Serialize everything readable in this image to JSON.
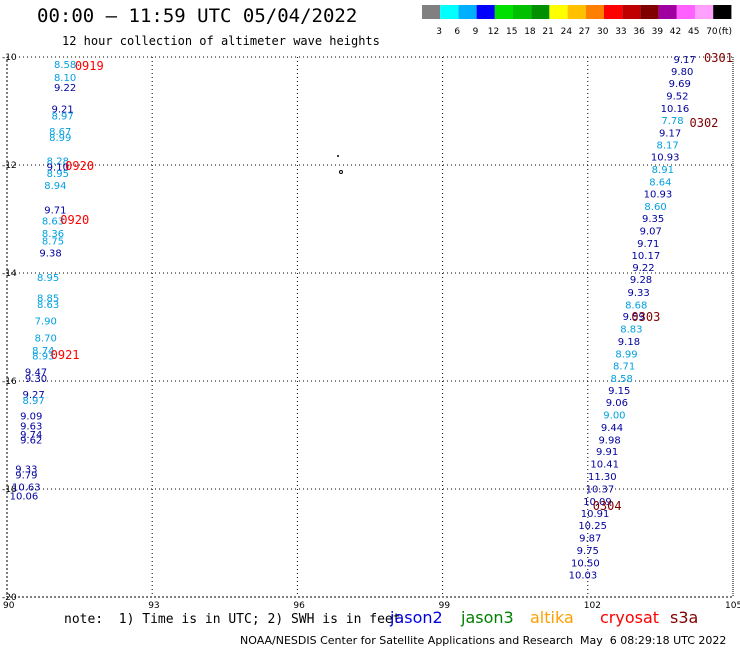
{
  "header": {
    "title": "00:00 — 11:59 UTC 05/04/2022",
    "subtitle": "12 hour collection of altimeter wave heights"
  },
  "colorbar": {
    "colors": [
      "#808080",
      "#00ffff",
      "#00b0ff",
      "#0000ff",
      "#00e000",
      "#00c000",
      "#009000",
      "#ffff00",
      "#ffc000",
      "#ff8000",
      "#ff0000",
      "#c00000",
      "#800000",
      "#a000a0",
      "#ff60ff",
      "#ffa0ff",
      "#000000"
    ],
    "labels": [
      "3",
      "6",
      "9",
      "12",
      "15",
      "18",
      "21",
      "24",
      "27",
      "30",
      "33",
      "36",
      "39",
      "42",
      "45",
      "70",
      "(ft)"
    ]
  },
  "map": {
    "lat_ticks": [
      "-10",
      "-12",
      "-14",
      "-16",
      "-18",
      "-20"
    ],
    "lon_ticks": [
      "90",
      "93",
      "96",
      "99",
      "102",
      "105"
    ]
  },
  "chart_data": {
    "type": "scatter",
    "xlim": [
      90,
      105
    ],
    "ylim": [
      -20,
      -10
    ],
    "grid": true,
    "colors": {
      "dark_blue": "#0000a0",
      "light_blue": "#00a0e0",
      "time_red": "#ff0000",
      "time_maroon": "#800000"
    },
    "time_labels": [
      {
        "text": "0919",
        "x": 91.7,
        "y": -10.15,
        "color": "time_red"
      },
      {
        "text": "0920",
        "x": 91.5,
        "y": -12.0,
        "color": "time_red"
      },
      {
        "text": "0920",
        "x": 91.4,
        "y": -13.0,
        "color": "time_red"
      },
      {
        "text": "0921",
        "x": 91.2,
        "y": -15.5,
        "color": "time_red"
      },
      {
        "text": "0301",
        "x": 104.7,
        "y": -10.0,
        "color": "time_maroon"
      },
      {
        "text": "0302",
        "x": 104.4,
        "y": -11.2,
        "color": "time_maroon"
      },
      {
        "text": "0303",
        "x": 103.2,
        "y": -14.8,
        "color": "time_maroon"
      },
      {
        "text": "0304",
        "x": 102.4,
        "y": -18.3,
        "color": "time_maroon"
      }
    ],
    "points": [
      {
        "v": "8.58",
        "x": 91.2,
        "y": -10.13,
        "c": "light_blue"
      },
      {
        "v": "8.10",
        "x": 91.2,
        "y": -10.37,
        "c": "light_blue"
      },
      {
        "v": "9.22",
        "x": 91.2,
        "y": -10.56,
        "c": "dark_blue"
      },
      {
        "v": "9.21",
        "x": 91.15,
        "y": -10.95,
        "c": "dark_blue"
      },
      {
        "v": "8.97",
        "x": 91.15,
        "y": -11.08,
        "c": "light_blue"
      },
      {
        "v": "8.67",
        "x": 91.1,
        "y": -11.37,
        "c": "light_blue"
      },
      {
        "v": "8.99",
        "x": 91.1,
        "y": -11.48,
        "c": "light_blue"
      },
      {
        "v": "8.28",
        "x": 91.05,
        "y": -11.92,
        "c": "light_blue"
      },
      {
        "v": "9.10",
        "x": 91.05,
        "y": -12.03,
        "c": "dark_blue"
      },
      {
        "v": "8.95",
        "x": 91.05,
        "y": -12.15,
        "c": "light_blue"
      },
      {
        "v": "8.94",
        "x": 91.0,
        "y": -12.37,
        "c": "light_blue"
      },
      {
        "v": "9.71",
        "x": 91.0,
        "y": -12.82,
        "c": "dark_blue"
      },
      {
        "v": "8.63",
        "x": 90.95,
        "y": -13.03,
        "c": "light_blue"
      },
      {
        "v": "8.36",
        "x": 90.95,
        "y": -13.26,
        "c": "light_blue"
      },
      {
        "v": "8.75",
        "x": 90.95,
        "y": -13.4,
        "c": "light_blue"
      },
      {
        "v": "9.38",
        "x": 90.9,
        "y": -13.62,
        "c": "dark_blue"
      },
      {
        "v": "8.95",
        "x": 90.85,
        "y": -14.07,
        "c": "light_blue"
      },
      {
        "v": "8.85",
        "x": 90.85,
        "y": -14.45,
        "c": "light_blue"
      },
      {
        "v": "8.63",
        "x": 90.85,
        "y": -14.57,
        "c": "light_blue"
      },
      {
        "v": "7.90",
        "x": 90.8,
        "y": -14.88,
        "c": "light_blue"
      },
      {
        "v": "8.70",
        "x": 90.8,
        "y": -15.19,
        "c": "light_blue"
      },
      {
        "v": "8.74",
        "x": 90.75,
        "y": -15.43,
        "c": "light_blue"
      },
      {
        "v": "8.93",
        "x": 90.75,
        "y": -15.53,
        "c": "light_blue"
      },
      {
        "v": "9.47",
        "x": 90.6,
        "y": -15.82,
        "c": "dark_blue"
      },
      {
        "v": "9.30",
        "x": 90.6,
        "y": -15.94,
        "c": "dark_blue"
      },
      {
        "v": "9.27",
        "x": 90.55,
        "y": -16.24,
        "c": "dark_blue"
      },
      {
        "v": "8.97",
        "x": 90.55,
        "y": -16.35,
        "c": "light_blue"
      },
      {
        "v": "9.09",
        "x": 90.5,
        "y": -16.64,
        "c": "dark_blue"
      },
      {
        "v": "9.63",
        "x": 90.5,
        "y": -16.82,
        "c": "dark_blue"
      },
      {
        "v": "9.74",
        "x": 90.5,
        "y": -16.98,
        "c": "dark_blue"
      },
      {
        "v": "9.62",
        "x": 90.5,
        "y": -17.08,
        "c": "dark_blue"
      },
      {
        "v": "9.33",
        "x": 90.4,
        "y": -17.62,
        "c": "dark_blue"
      },
      {
        "v": "9.79",
        "x": 90.4,
        "y": -17.73,
        "c": "dark_blue"
      },
      {
        "v": "10.63",
        "x": 90.4,
        "y": -17.95,
        "c": "dark_blue"
      },
      {
        "v": "10.06",
        "x": 90.35,
        "y": -18.12,
        "c": "dark_blue"
      },
      {
        "v": "9.17",
        "x": 104.0,
        "y": -10.04,
        "c": "dark_blue"
      },
      {
        "v": "9.80",
        "x": 103.95,
        "y": -10.26,
        "c": "dark_blue"
      },
      {
        "v": "9.69",
        "x": 103.9,
        "y": -10.48,
        "c": "dark_blue"
      },
      {
        "v": "9.52",
        "x": 103.85,
        "y": -10.71,
        "c": "dark_blue"
      },
      {
        "v": "10.16",
        "x": 103.8,
        "y": -10.94,
        "c": "dark_blue"
      },
      {
        "v": "7.78",
        "x": 103.75,
        "y": -11.17,
        "c": "light_blue"
      },
      {
        "v": "9.17",
        "x": 103.7,
        "y": -11.4,
        "c": "dark_blue"
      },
      {
        "v": "8.17",
        "x": 103.65,
        "y": -11.62,
        "c": "light_blue"
      },
      {
        "v": "10.93",
        "x": 103.6,
        "y": -11.84,
        "c": "dark_blue"
      },
      {
        "v": "8.91",
        "x": 103.55,
        "y": -12.07,
        "c": "light_blue"
      },
      {
        "v": "8.64",
        "x": 103.5,
        "y": -12.31,
        "c": "light_blue"
      },
      {
        "v": "10.93",
        "x": 103.45,
        "y": -12.53,
        "c": "dark_blue"
      },
      {
        "v": "8.60",
        "x": 103.4,
        "y": -12.76,
        "c": "light_blue"
      },
      {
        "v": "9.35",
        "x": 103.35,
        "y": -12.98,
        "c": "dark_blue"
      },
      {
        "v": "9.07",
        "x": 103.3,
        "y": -13.21,
        "c": "dark_blue"
      },
      {
        "v": "9.71",
        "x": 103.25,
        "y": -13.44,
        "c": "dark_blue"
      },
      {
        "v": "10.17",
        "x": 103.2,
        "y": -13.67,
        "c": "dark_blue"
      },
      {
        "v": "9.22",
        "x": 103.15,
        "y": -13.89,
        "c": "dark_blue"
      },
      {
        "v": "9.28",
        "x": 103.1,
        "y": -14.11,
        "c": "dark_blue"
      },
      {
        "v": "9.33",
        "x": 103.05,
        "y": -14.35,
        "c": "dark_blue"
      },
      {
        "v": "8.68",
        "x": 103.0,
        "y": -14.58,
        "c": "light_blue"
      },
      {
        "v": "9.59",
        "x": 102.95,
        "y": -14.8,
        "c": "dark_blue"
      },
      {
        "v": "8.83",
        "x": 102.9,
        "y": -15.03,
        "c": "light_blue"
      },
      {
        "v": "9.18",
        "x": 102.85,
        "y": -15.26,
        "c": "dark_blue"
      },
      {
        "v": "8.99",
        "x": 102.8,
        "y": -15.49,
        "c": "light_blue"
      },
      {
        "v": "8.71",
        "x": 102.75,
        "y": -15.71,
        "c": "light_blue"
      },
      {
        "v": "8.58",
        "x": 102.7,
        "y": -15.94,
        "c": "light_blue"
      },
      {
        "v": "9.15",
        "x": 102.65,
        "y": -16.17,
        "c": "dark_blue"
      },
      {
        "v": "9.06",
        "x": 102.6,
        "y": -16.39,
        "c": "dark_blue"
      },
      {
        "v": "9.00",
        "x": 102.55,
        "y": -16.62,
        "c": "light_blue"
      },
      {
        "v": "9.44",
        "x": 102.5,
        "y": -16.85,
        "c": "dark_blue"
      },
      {
        "v": "9.98",
        "x": 102.45,
        "y": -17.08,
        "c": "dark_blue"
      },
      {
        "v": "9.91",
        "x": 102.4,
        "y": -17.3,
        "c": "dark_blue"
      },
      {
        "v": "10.41",
        "x": 102.35,
        "y": -17.53,
        "c": "dark_blue"
      },
      {
        "v": "11.30",
        "x": 102.3,
        "y": -17.76,
        "c": "dark_blue"
      },
      {
        "v": "10.37",
        "x": 102.25,
        "y": -17.99,
        "c": "dark_blue"
      },
      {
        "v": "10.09",
        "x": 102.2,
        "y": -18.22,
        "c": "dark_blue"
      },
      {
        "v": "10.91",
        "x": 102.15,
        "y": -18.44,
        "c": "dark_blue"
      },
      {
        "v": "10.25",
        "x": 102.1,
        "y": -18.67,
        "c": "dark_blue"
      },
      {
        "v": "9.87",
        "x": 102.05,
        "y": -18.9,
        "c": "dark_blue"
      },
      {
        "v": "9.75",
        "x": 102.0,
        "y": -19.13,
        "c": "dark_blue"
      },
      {
        "v": "10.50",
        "x": 101.95,
        "y": -19.36,
        "c": "dark_blue"
      },
      {
        "v": "10.03",
        "x": 101.9,
        "y": -19.58,
        "c": "dark_blue"
      }
    ]
  },
  "footer": {
    "note": "note:  1) Time is in UTC; 2) SWH is in feet",
    "legend": [
      {
        "label": "jason2",
        "color": "#0000e0"
      },
      {
        "label": "jason3",
        "color": "#008000"
      },
      {
        "label": "altika",
        "color": "#ffa000"
      },
      {
        "label": "cryosat",
        "color": "#ff0000"
      },
      {
        "label": "s3a",
        "color": "#800000"
      }
    ],
    "credit": "NOAA/NESDIS Center for Satellite Applications and Research",
    "date": "May  6 08:29:18 UTC 2022"
  }
}
